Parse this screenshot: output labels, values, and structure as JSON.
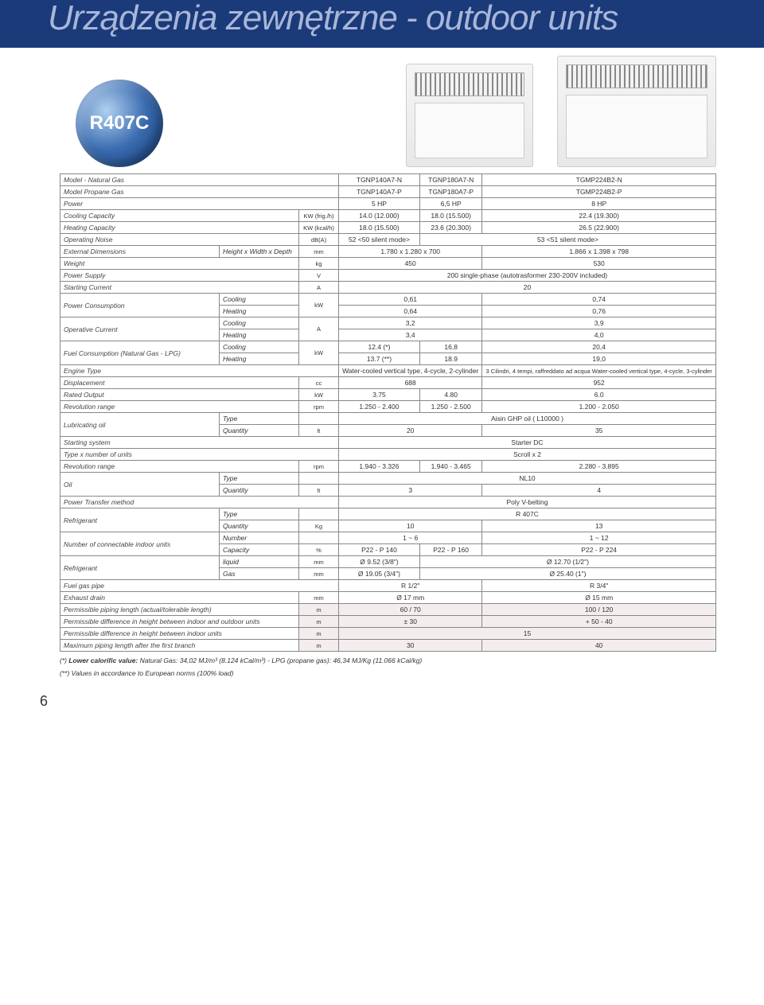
{
  "header": {
    "title": "Urządzenia zewnętrzne - outdoor units"
  },
  "badge": "R407C",
  "models": {
    "nat": [
      "TGNP140A7-N",
      "TGNP180A7-N",
      "TGMP224B2-N"
    ],
    "prop": [
      "TGNP140A7-P",
      "TGNP180A7-P",
      "TGMP224B2-P"
    ]
  },
  "labels": {
    "model_nat": "Model - Natural Gas",
    "model_prop": "Model Propane Gas",
    "power": "Power",
    "cooling_cap": "Cooling Capacity",
    "heating_cap": "Heating Capacity",
    "op_noise": "Operating Noise",
    "ext_dim": "External Dimensions",
    "hwd": "Height x Width x Depth",
    "weight": "Weight",
    "psupply": "Power Supply",
    "start_curr": "Starting Current",
    "pcons": "Power Consumption",
    "cooling": "Cooling",
    "heating": "Heating",
    "opcurr": "Operative Current",
    "fuel": "Fuel Consumption (Natural Gas - LPG)",
    "engine": "Engine Type",
    "displacement": "Displacement",
    "rated_out": "Rated Output",
    "rev_range": "Revolution range",
    "lub_oil": "Lubricating oil",
    "type": "Type",
    "quantity": "Quantity",
    "start_sys": "Starting system",
    "type_units": "Type x number of units",
    "oil": "Oil",
    "ptm": "Power Transfer method",
    "refrigerant": "Refrigerant",
    "nciu": "Number of connectable indoor units",
    "number": "Number",
    "capacity": "Capacity",
    "liquid": "liquid",
    "gas": "Gas",
    "fuel_pipe": "Fuel gas pipe",
    "exhaust": "Exhaust drain",
    "perm_pipe": "Permissible piping length (actual/tolerable length)",
    "perm_io": "Permissible difference in height between indoor and outdoor units",
    "perm_indoor": "Permissible difference in height between indoor units",
    "max_pipe": "Maximum piping length after the first branch",
    "footnote1_pre": "(*) ",
    "footnote1_b": "Lower calorific value:",
    "footnote1": " Natural Gas: 34,02 MJ/m³ (8.124 kCal/m³) - LPG (propane gas): 46,34 MJ/Kg (11.066 kCal/kg)",
    "footnote2": "(**) Values in accordance to European norms (100% load)"
  },
  "units": {
    "kw_frig": "KW (frig./h)",
    "kw_kcal": "KW (kcal/h)",
    "dba": "dB(A)",
    "mm": "mm",
    "kg": "kg",
    "v": "V",
    "a": "A",
    "kw": "kW",
    "cc": "cc",
    "rpm": "rpm",
    "lt": "lt",
    "kg2": "Kg",
    "pct": "%",
    "m": "m"
  },
  "vals": {
    "power_row": [
      "5 HP",
      "6,5 HP",
      "8 HP"
    ],
    "cool_cap": [
      "14.0 (12.000)",
      "18.0 (15.500)",
      "22.4 (19.300)"
    ],
    "heat_cap": [
      "18.0 (15.500)",
      "23.6 (20.300)",
      "26.5 (22.900)"
    ],
    "noise": [
      "52 <50 silent mode>",
      "53 <51 silent mode>"
    ],
    "dims": [
      "1.780 x 1.280 x 700",
      "1.866 x 1.398 x 798"
    ],
    "weight": [
      "450",
      "530"
    ],
    "psupply": "200 single-phase (autotrasformer 230-200V included)",
    "start_curr": "20",
    "pcons_cool": [
      "0,61",
      "0,74"
    ],
    "pcons_heat": [
      "0,64",
      "0,76"
    ],
    "opcurr_cool": [
      "3,2",
      "3,9"
    ],
    "opcurr_heat": [
      "3,4",
      "4,0"
    ],
    "fuel_cool": [
      "12.4 (*)",
      "16,8",
      "20,4"
    ],
    "fuel_heat": [
      "13.7 (**)",
      "18.9",
      "19,0"
    ],
    "engine": [
      "Water-cooled vertical type, 4-cycle, 2-cylinder",
      "3 Cilindri, 4 tempi, raffreddato ad acqua Water-cooled vertical type, 4-cycle, 3-cylinder"
    ],
    "displacement": [
      "688",
      "952"
    ],
    "rated_out": [
      "3.75",
      "4.80",
      "6.0"
    ],
    "rev_range_eng": [
      "1.250 - 2.400",
      "1.250 - 2.500",
      "1.200 - 2.050"
    ],
    "lub_type": "Aisin GHP oil ( L10000 )",
    "lub_qty": [
      "20",
      "35"
    ],
    "start_sys": "Starter DC",
    "type_units": "Scroll x 2",
    "rev_range_comp": [
      "1.940 - 3.326",
      "1.940 - 3.465",
      "2.280 - 3.895"
    ],
    "oil_type": "NL10",
    "oil_qty": [
      "3",
      "4"
    ],
    "ptm": "Poly V-belting",
    "refrig_type": "R 407C",
    "refrig_qty": [
      "10",
      "13"
    ],
    "nciu_num": [
      "1 ~ 6",
      "1 ~ 12"
    ],
    "nciu_cap": [
      "P22 - P 140",
      "P22 - P 160",
      "P22 - P 224"
    ],
    "liquid": [
      "Ø 9.52 (3/8\")",
      "Ø 12.70 (1/2\")"
    ],
    "gas": [
      "Ø 19.05 (3/4\")",
      "Ø 25.40 (1\")"
    ],
    "fuel_pipe": [
      "R 1/2\"",
      "R 3/4\""
    ],
    "exhaust": [
      "Ø 17 mm",
      "Ø 15 mm"
    ],
    "perm_pipe": [
      "60 / 70",
      "100 / 120"
    ],
    "perm_io": [
      "± 30",
      "+ 50  - 40"
    ],
    "perm_indoor": "15",
    "max_pipe": [
      "30",
      "40"
    ]
  },
  "page_num": "6"
}
